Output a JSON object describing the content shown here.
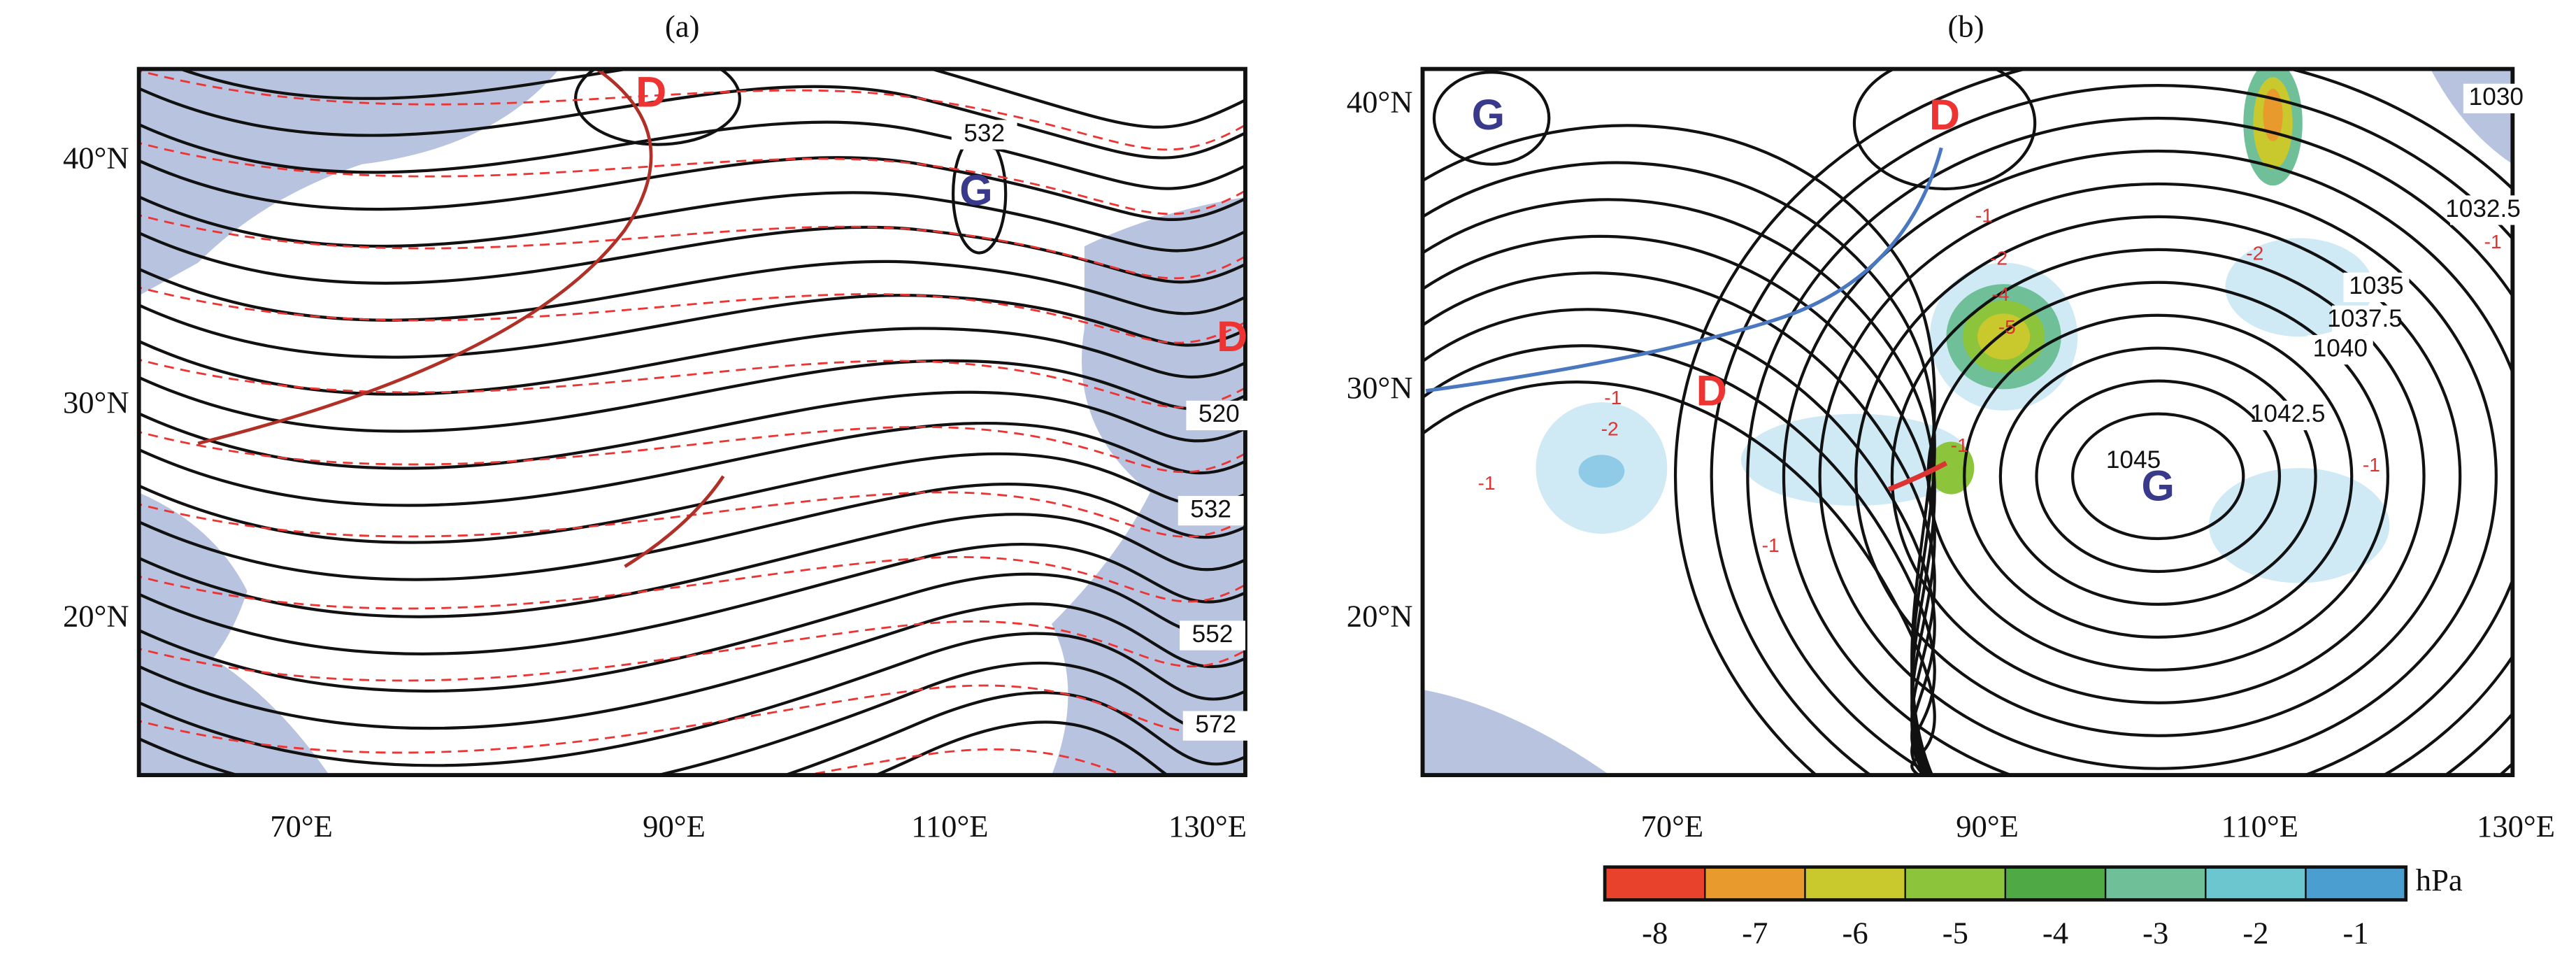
{
  "panels": [
    {
      "title": "(a)",
      "lat_labels": [
        "40°N",
        "30°N",
        "20°N"
      ],
      "lon_labels": [
        "70°E",
        "90°E",
        "110°E",
        "130°E"
      ],
      "contour_labels": [
        "532",
        "520",
        "532",
        "552",
        "572"
      ],
      "centers": [
        "D",
        "G",
        "D"
      ]
    },
    {
      "title": "(b)",
      "lat_labels": [
        "40°N",
        "30°N",
        "20°N"
      ],
      "lon_labels": [
        "70°E",
        "90°E",
        "110°E",
        "130°E"
      ],
      "contour_labels": [
        "1030",
        "1032.5",
        "1035",
        "1037.5",
        "1040",
        "1042.5",
        "1045"
      ],
      "anomaly_labels": [
        "-1",
        "-2",
        "-4",
        "-5",
        "-1",
        "-2",
        "-1",
        "-1",
        "-1",
        "-2",
        "-1",
        "-1"
      ],
      "centers": [
        "G",
        "D",
        "D",
        "G"
      ]
    }
  ],
  "colorbar": {
    "unit": "hPa",
    "ticks": [
      -8,
      -7,
      -6,
      -5,
      -4,
      -3,
      -2,
      -1
    ],
    "colors": [
      "#e8412c",
      "#e89a2c",
      "#c9c92e",
      "#8cc43c",
      "#4faa46",
      "#6fbf98",
      "#6cc6d0",
      "#4a9fd0"
    ]
  }
}
